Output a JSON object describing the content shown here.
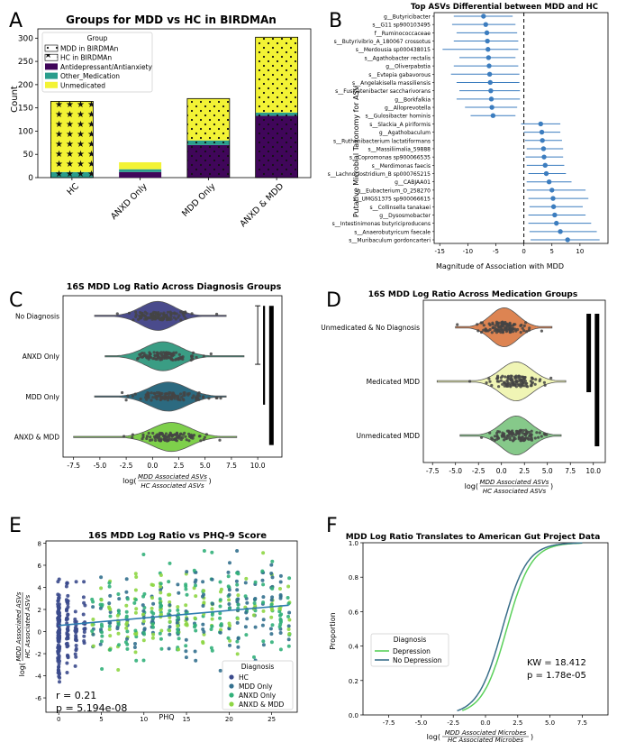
{
  "panel_letters": [
    "A",
    "B",
    "C",
    "D",
    "E",
    "F"
  ],
  "chart_data": [
    {
      "id": "A",
      "type": "bar",
      "title": "Groups for MDD vs HC in BIRDMAn",
      "ylabel": "Count",
      "ylim": [
        0,
        320
      ],
      "yticks": [
        0,
        50,
        100,
        150,
        200,
        250,
        300
      ],
      "categories": [
        "HC",
        "ANXD Only",
        "MDD Only",
        "ANXD & MDD"
      ],
      "series": [
        {
          "name": "Antidepressant/Antianxiety",
          "color": "#40065a",
          "values": [
            0,
            12,
            70,
            133
          ]
        },
        {
          "name": "Other_Medication",
          "color": "#2a9d8c",
          "values": [
            12,
            6,
            10,
            7
          ]
        },
        {
          "name": "Unmedicated",
          "color": "#f3f335",
          "values": [
            152,
            15,
            90,
            162
          ]
        }
      ],
      "totals": [
        164,
        33,
        170,
        302
      ],
      "hatch": [
        "stars",
        "none",
        "dots",
        "dots"
      ],
      "legend": {
        "title": "Group",
        "items": [
          "MDD in BIRDMAn",
          "HC in BIRDMAn",
          "Antidepressant/Antianxiety",
          "Other_Medication",
          "Unmedicated"
        ]
      }
    },
    {
      "id": "B",
      "type": "forest",
      "title": "Top ASVs Differential between MDD and HC",
      "xlabel": "Magnitude of Association with MDD",
      "ylabel": "Putative Microbial Taxonomy for ASV",
      "xlim": [
        -16,
        15
      ],
      "xticks": [
        -15,
        -10,
        -5,
        0,
        5,
        10
      ],
      "taxa": [
        {
          "label": "g__Butyricibacter",
          "mean": -7.2,
          "lo": -12.5,
          "hi": -2.0
        },
        {
          "label": "s__G11 sp900103495",
          "mean": -6.8,
          "lo": -12.8,
          "hi": -1.5
        },
        {
          "label": "f__Ruminococcaceae",
          "mean": -6.6,
          "lo": -12.0,
          "hi": -1.2
        },
        {
          "label": "s__Butyrivibrio_A_180067 crossotus",
          "mean": -6.5,
          "lo": -12.5,
          "hi": -1.0
        },
        {
          "label": "s__Merdousia sp000438015",
          "mean": -6.4,
          "lo": -14.5,
          "hi": -1.0
        },
        {
          "label": "s__Agathobacter rectalis",
          "mean": -6.3,
          "lo": -11.5,
          "hi": -1.5
        },
        {
          "label": "g__Oliverpabstia",
          "mean": -6.2,
          "lo": -12.5,
          "hi": -1.0
        },
        {
          "label": "s__Evtepia gabavorous",
          "mean": -6.1,
          "lo": -13.0,
          "hi": -0.8
        },
        {
          "label": "s__Angelakisella massiliensis",
          "mean": -6.0,
          "lo": -12.0,
          "hi": -0.8
        },
        {
          "label": "s__Fusicatenibacter saccharivorans",
          "mean": -5.9,
          "lo": -11.5,
          "hi": -0.7
        },
        {
          "label": "g__Borkfalkia",
          "mean": -5.8,
          "lo": -12.0,
          "hi": -0.7
        },
        {
          "label": "g__Alloprevotella",
          "mean": -5.7,
          "lo": -10.5,
          "hi": -1.2
        },
        {
          "label": "s__Gulosibacter hominis",
          "mean": -5.5,
          "lo": -9.5,
          "hi": -1.5
        },
        {
          "label": "s__Slackia_A piriformis",
          "mean": 3.0,
          "lo": -0.5,
          "hi": 6.5
        },
        {
          "label": "g__Agathobaculum",
          "mean": 3.2,
          "lo": 0.0,
          "hi": 6.5
        },
        {
          "label": "s__Ruthenibacterium lactatiformans",
          "mean": 3.3,
          "lo": 0.2,
          "hi": 6.8
        },
        {
          "label": "s__Massiliimalia_59888",
          "mean": 3.5,
          "lo": 0.5,
          "hi": 7.0
        },
        {
          "label": "s__Copromonas sp900066535",
          "mean": 3.6,
          "lo": 0.3,
          "hi": 7.0
        },
        {
          "label": "s__Merdimonas faecis",
          "mean": 3.8,
          "lo": 0.5,
          "hi": 7.2
        },
        {
          "label": "s__Lachnoclostridium_B sp000765215",
          "mean": 4.0,
          "lo": 0.8,
          "hi": 7.5
        },
        {
          "label": "g__CABJAA01",
          "mean": 4.5,
          "lo": 0.5,
          "hi": 8.5
        },
        {
          "label": "g__Eubacterium_O_258270",
          "mean": 5.0,
          "lo": 0.5,
          "hi": 11.0
        },
        {
          "label": "s__UMGS1375 sp900066615",
          "mean": 5.2,
          "lo": 0.8,
          "hi": 11.5
        },
        {
          "label": "s__Collinsella tanakaei",
          "mean": 5.3,
          "lo": 1.0,
          "hi": 10.5
        },
        {
          "label": "g__Dysosmobacter",
          "mean": 5.5,
          "lo": 0.8,
          "hi": 11.0
        },
        {
          "label": "s__Intestinimonas butyriciproducens",
          "mean": 5.8,
          "lo": 0.8,
          "hi": 12.0
        },
        {
          "label": "s__Anaerobutyricum faecale",
          "mean": 6.5,
          "lo": 1.0,
          "hi": 13.0
        },
        {
          "label": "s__Muribaculum gordoncarteri",
          "mean": 7.8,
          "lo": 1.2,
          "hi": 13.5
        }
      ]
    },
    {
      "id": "C",
      "type": "violin",
      "title": "16S MDD Log Ratio Across Diagnosis Groups",
      "xlabel_main": "log(",
      "xlabel_num": "MDD Associated ASVs",
      "xlabel_den": "HC Associated ASVs",
      "xlabel_close": ")",
      "xlim": [
        -8.5,
        12.3
      ],
      "xticks": [
        -7.5,
        -5.0,
        -2.5,
        0.0,
        2.5,
        5.0,
        7.5,
        10.0
      ],
      "groups": [
        {
          "label": "No Diagnosis",
          "color": "#4a4b8c",
          "median": 0.5,
          "min": -5.5,
          "max": 7.0,
          "sd": 1.6
        },
        {
          "label": "ANXD Only",
          "color": "#3a9d84",
          "median": 1.0,
          "min": -4.5,
          "max": 8.7,
          "sd": 1.7
        },
        {
          "label": "MDD Only",
          "color": "#2c6a80",
          "median": 1.5,
          "min": -5.5,
          "max": 7.0,
          "sd": 1.8
        },
        {
          "label": "ANXD & MDD",
          "color": "#7ed04b",
          "median": 1.8,
          "min": -7.5,
          "max": 8.0,
          "sd": 1.8
        }
      ],
      "significance_bars": [
        {
          "from": 0,
          "to": 1,
          "x": 10.0,
          "width": "thin"
        },
        {
          "from": 0,
          "to": 2,
          "x": 10.6,
          "width": "medium"
        },
        {
          "from": 0,
          "to": 3,
          "x": 11.3,
          "width": "thick"
        }
      ]
    },
    {
      "id": "D",
      "type": "violin",
      "title": "16S MDD Log Ratio Across Medication Groups",
      "xlabel_main": "log(",
      "xlabel_num": "MDD Associated ASVs",
      "xlabel_den": "HC Associated ASVs",
      "xlabel_close": ")",
      "xlim": [
        -8.5,
        11.3
      ],
      "xticks": [
        -7.5,
        -5.0,
        -2.5,
        0.0,
        2.5,
        5.0,
        7.5,
        10.0
      ],
      "groups": [
        {
          "label": "Unmedicated & No Diagnosis",
          "color": "#dd8452",
          "median": 0.3,
          "min": -5.0,
          "max": 5.5,
          "sd": 1.5
        },
        {
          "label": "Medicated MDD",
          "color": "#f0f5b5",
          "median": 1.6,
          "min": -7.0,
          "max": 7.0,
          "sd": 1.7
        },
        {
          "label": "Unmedicated MDD",
          "color": "#86c98a",
          "median": 1.6,
          "min": -4.5,
          "max": 6.5,
          "sd": 1.6
        }
      ],
      "significance_bars": [
        {
          "from": 0,
          "to": 1,
          "x": 9.5,
          "width": "thick"
        },
        {
          "from": 0,
          "to": 2,
          "x": 10.4,
          "width": "thick"
        }
      ]
    },
    {
      "id": "E",
      "type": "scatter",
      "title": "16S MDD Log Ratio vs PHQ-9 Score",
      "xlabel": "PHQ",
      "ylabel_num": "MDD Associated ASVs",
      "ylabel_den": "HC Associated ASVs",
      "ylabel_main": "log(",
      "xlim": [
        -1.5,
        28
      ],
      "ylim": [
        -7.3,
        8.2
      ],
      "xticks": [
        0,
        5,
        10,
        15,
        20,
        25
      ],
      "yticks": [
        -6,
        -4,
        -2,
        0,
        2,
        4,
        6,
        8
      ],
      "regression": {
        "intercept": 0.55,
        "slope": 0.068
      },
      "stats": {
        "r": "r = 0.21",
        "p": "p = 5.194e-08"
      },
      "legend": {
        "title": "Diagnosis",
        "items": [
          {
            "name": "HC",
            "color": "#3b4a8c"
          },
          {
            "name": "MDD Only",
            "color": "#33708e"
          },
          {
            "name": "ANXD Only",
            "color": "#32b07a"
          },
          {
            "name": "ANXD & MDD",
            "color": "#8ed644"
          }
        ]
      }
    },
    {
      "id": "F",
      "type": "line",
      "title": "MDD Log Ratio Translates to American Gut Project Data",
      "ylabel": "Proportion",
      "xlabel_main": "log(",
      "xlabel_num": "MDD Associated Microbes",
      "xlabel_den": "HC Associated Microbes",
      "xlabel_close": ")",
      "xlim": [
        -9.5,
        9.5
      ],
      "ylim": [
        0,
        1.0
      ],
      "xticks": [
        -7.5,
        -5.0,
        -2.5,
        0.0,
        2.5,
        5.0,
        7.5
      ],
      "yticks": [
        0.0,
        0.2,
        0.4,
        0.6,
        0.8,
        1.0
      ],
      "series": [
        {
          "name": "Depression",
          "color": "#5ad05a",
          "center": 1.65,
          "scale": 0.95,
          "start": -1.8,
          "end": 7.5
        },
        {
          "name": "No Depression",
          "color": "#3a6f8a",
          "center": 1.3,
          "scale": 0.95,
          "start": -2.2,
          "end": 7.5
        }
      ],
      "legend_title": "Diagnosis",
      "stats": {
        "kw": "KW = 18.412",
        "p": "p = 1.78e-05"
      }
    }
  ]
}
